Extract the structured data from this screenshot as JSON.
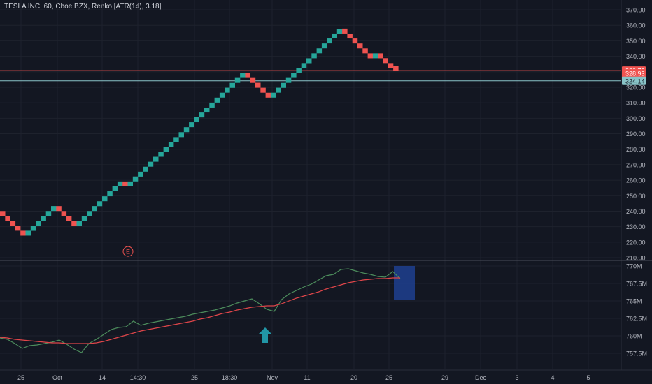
{
  "header": {
    "title": "TESLA INC, 60, Cboe BZX, Renko [ATR(14), 3.18]"
  },
  "colors": {
    "background": "#131722",
    "up": "#26a69a",
    "down": "#ef5350",
    "grid": "#1e222d",
    "axis_text": "#b2b5be",
    "pane_separator": "#2a2e39",
    "annotation_box": "#1f3f8f",
    "arrow": "#2196a6",
    "green_line": "#4c8c5c",
    "red_line": "#e0464a"
  },
  "chart_data": [
    {
      "type": "renko",
      "box_size": 3.18,
      "price_axis": {
        "ylim": [
          208,
          374
        ],
        "ticks": [
          "370.00",
          "360.00",
          "350.00",
          "340.00",
          "330.00",
          "320.00",
          "310.00",
          "300.00",
          "290.00",
          "280.00",
          "270.00",
          "260.00",
          "250.00",
          "240.00",
          "230.00",
          "220.00",
          "210.00"
        ]
      },
      "x_axis_ticks": [
        "25",
        "Oct",
        "14",
        "14:30",
        "25",
        "18:30",
        "Nov",
        "11",
        "20",
        "25",
        "29",
        "Dec",
        "3",
        "4",
        "5"
      ],
      "bricks": [
        {
          "dir": "down",
          "close": 236.9
        },
        {
          "dir": "down",
          "close": 233.7
        },
        {
          "dir": "down",
          "close": 230.5
        },
        {
          "dir": "down",
          "close": 227.4
        },
        {
          "dir": "down",
          "close": 224.2
        },
        {
          "dir": "up",
          "close": 227.4
        },
        {
          "dir": "up",
          "close": 230.5
        },
        {
          "dir": "up",
          "close": 233.7
        },
        {
          "dir": "up",
          "close": 236.9
        },
        {
          "dir": "up",
          "close": 240.1
        },
        {
          "dir": "up",
          "close": 243.3
        },
        {
          "dir": "down",
          "close": 240.1
        },
        {
          "dir": "down",
          "close": 236.9
        },
        {
          "dir": "down",
          "close": 233.7
        },
        {
          "dir": "down",
          "close": 230.5
        },
        {
          "dir": "up",
          "close": 233.7
        },
        {
          "dir": "up",
          "close": 236.9
        },
        {
          "dir": "up",
          "close": 240.1
        },
        {
          "dir": "up",
          "close": 243.3
        },
        {
          "dir": "up",
          "close": 246.4
        },
        {
          "dir": "up",
          "close": 249.6
        },
        {
          "dir": "up",
          "close": 252.8
        },
        {
          "dir": "up",
          "close": 256.0
        },
        {
          "dir": "up",
          "close": 259.2
        },
        {
          "dir": "down",
          "close": 256.0
        },
        {
          "dir": "up",
          "close": 259.2
        },
        {
          "dir": "up",
          "close": 262.4
        },
        {
          "dir": "up",
          "close": 265.5
        },
        {
          "dir": "up",
          "close": 268.7
        },
        {
          "dir": "up",
          "close": 271.9
        },
        {
          "dir": "up",
          "close": 275.1
        },
        {
          "dir": "up",
          "close": 278.3
        },
        {
          "dir": "up",
          "close": 281.5
        },
        {
          "dir": "up",
          "close": 284.6
        },
        {
          "dir": "up",
          "close": 287.8
        },
        {
          "dir": "up",
          "close": 291.0
        },
        {
          "dir": "up",
          "close": 294.2
        },
        {
          "dir": "up",
          "close": 297.4
        },
        {
          "dir": "up",
          "close": 300.6
        },
        {
          "dir": "up",
          "close": 303.7
        },
        {
          "dir": "up",
          "close": 306.9
        },
        {
          "dir": "up",
          "close": 310.1
        },
        {
          "dir": "up",
          "close": 313.3
        },
        {
          "dir": "up",
          "close": 316.5
        },
        {
          "dir": "up",
          "close": 319.7
        },
        {
          "dir": "up",
          "close": 322.8
        },
        {
          "dir": "up",
          "close": 326.0
        },
        {
          "dir": "up",
          "close": 329.2
        },
        {
          "dir": "down",
          "close": 326.0
        },
        {
          "dir": "down",
          "close": 322.8
        },
        {
          "dir": "down",
          "close": 319.7
        },
        {
          "dir": "down",
          "close": 316.5
        },
        {
          "dir": "down",
          "close": 313.3
        },
        {
          "dir": "up",
          "close": 316.5
        },
        {
          "dir": "up",
          "close": 319.7
        },
        {
          "dir": "up",
          "close": 322.8
        },
        {
          "dir": "up",
          "close": 326.0
        },
        {
          "dir": "up",
          "close": 329.2
        },
        {
          "dir": "up",
          "close": 332.4
        },
        {
          "dir": "up",
          "close": 335.6
        },
        {
          "dir": "up",
          "close": 338.7
        },
        {
          "dir": "up",
          "close": 341.9
        },
        {
          "dir": "up",
          "close": 345.1
        },
        {
          "dir": "up",
          "close": 348.3
        },
        {
          "dir": "up",
          "close": 351.5
        },
        {
          "dir": "up",
          "close": 354.7
        },
        {
          "dir": "up",
          "close": 357.8
        },
        {
          "dir": "down",
          "close": 354.7
        },
        {
          "dir": "down",
          "close": 351.5
        },
        {
          "dir": "down",
          "close": 348.3
        },
        {
          "dir": "down",
          "close": 345.1
        },
        {
          "dir": "down",
          "close": 341.9
        },
        {
          "dir": "down",
          "close": 338.7
        },
        {
          "dir": "up",
          "close": 341.9
        },
        {
          "dir": "down",
          "close": 338.7
        },
        {
          "dir": "down",
          "close": 335.6
        },
        {
          "dir": "down",
          "close": 332.4
        },
        {
          "dir": "down",
          "close": 330.7
        }
      ],
      "price_labels": [
        {
          "value": "330.72",
          "price": 330.72,
          "color": "#ef5350"
        },
        {
          "value": "328.93",
          "price": 328.93,
          "color": "#ef5350"
        },
        {
          "value": "324.14",
          "price": 324.14,
          "color": "#89c4c8"
        }
      ],
      "horizontal_lines": [
        {
          "price": 330.72,
          "color": "#ef5350"
        },
        {
          "price": 324.14,
          "color": "#89c4c8"
        }
      ],
      "annotation": {
        "label": "E",
        "price": 214
      }
    },
    {
      "type": "line",
      "ylim": [
        755.8,
        770.3
      ],
      "y_ticks": [
        "770M",
        "767.5M",
        "765M",
        "762.5M",
        "760M",
        "757.5M"
      ],
      "series": [
        {
          "color": "green",
          "values": [
            759.7,
            759.5,
            758.9,
            758.2,
            758.6,
            758.7,
            758.9,
            759.1,
            759.4,
            758.8,
            758.1,
            757.6,
            758.9,
            759.5,
            760.2,
            760.9,
            761.2,
            761.3,
            762.1,
            761.5,
            761.8,
            762.0,
            762.2,
            762.4,
            762.6,
            762.8,
            763.1,
            763.3,
            763.5,
            763.7,
            764.0,
            764.3,
            764.7,
            765.0,
            765.3,
            764.6,
            763.8,
            763.5,
            765.2,
            766.0,
            766.5,
            767.0,
            767.4,
            768.0,
            768.6,
            768.8,
            769.5,
            769.6,
            769.3,
            769.0,
            768.8,
            768.5,
            768.4,
            769.2,
            768.2
          ]
        },
        {
          "color": "red",
          "values": [
            759.8,
            759.7,
            759.5,
            759.4,
            759.3,
            759.2,
            759.1,
            759.0,
            759.0,
            758.9,
            758.9,
            758.9,
            758.9,
            759.0,
            759.2,
            759.5,
            759.8,
            760.1,
            760.4,
            760.7,
            760.9,
            761.1,
            761.3,
            761.5,
            761.7,
            761.9,
            762.1,
            762.4,
            762.6,
            762.9,
            763.2,
            763.4,
            763.7,
            763.9,
            764.1,
            764.2,
            764.3,
            764.3,
            764.6,
            765.0,
            765.4,
            765.7,
            766.0,
            766.3,
            766.7,
            767.0,
            767.3,
            767.6,
            767.8,
            768.0,
            768.1,
            768.2,
            768.2,
            768.3,
            768.3
          ]
        }
      ]
    }
  ]
}
